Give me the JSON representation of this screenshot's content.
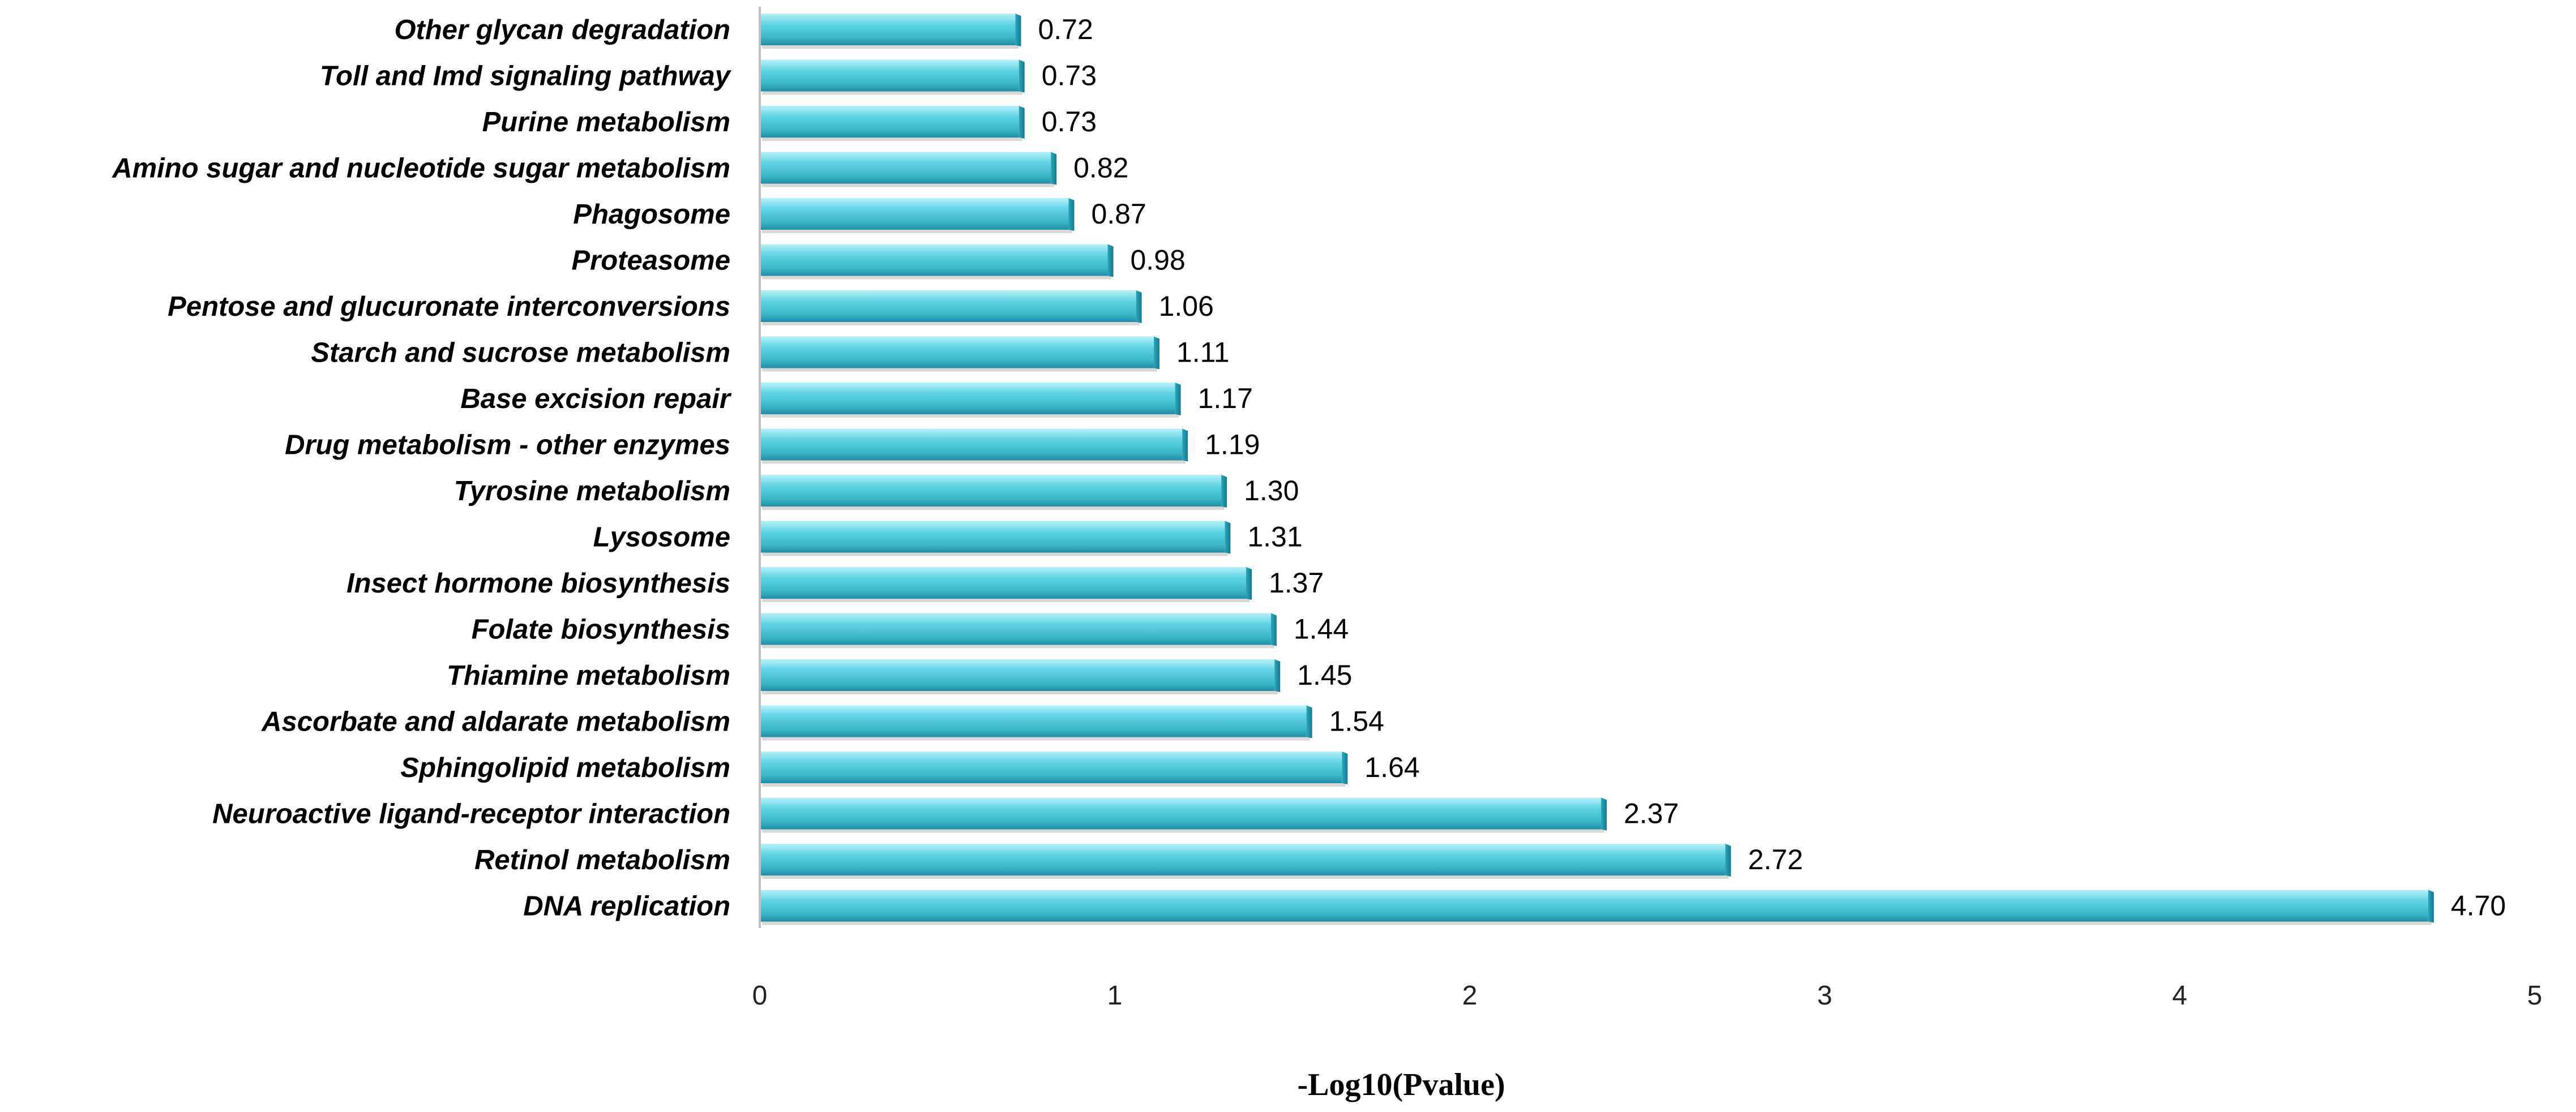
{
  "chart_data": {
    "type": "bar",
    "orientation": "horizontal",
    "categories": [
      "Other glycan degradation",
      "Toll and Imd signaling pathway",
      "Purine metabolism",
      "Amino sugar and nucleotide sugar metabolism",
      "Phagosome",
      "Proteasome",
      "Pentose and glucuronate interconversions",
      "Starch and sucrose metabolism",
      "Base excision repair",
      "Drug metabolism - other enzymes",
      "Tyrosine metabolism",
      "Lysosome",
      "Insect hormone biosynthesis",
      "Folate biosynthesis",
      "Thiamine metabolism",
      "Ascorbate and aldarate metabolism",
      "Sphingolipid metabolism",
      "Neuroactive ligand-receptor interaction",
      "Retinol metabolism",
      "DNA replication"
    ],
    "values": [
      0.72,
      0.73,
      0.73,
      0.82,
      0.87,
      0.98,
      1.06,
      1.11,
      1.17,
      1.19,
      1.3,
      1.31,
      1.37,
      1.44,
      1.45,
      1.54,
      1.64,
      2.37,
      2.72,
      4.7
    ],
    "value_labels": [
      "0.72",
      "0.73",
      "0.73",
      "0.82",
      "0.87",
      "0.98",
      "1.06",
      "1.11",
      "1.17",
      "1.19",
      "1.30",
      "1.31",
      "1.37",
      "1.44",
      "1.45",
      "1.54",
      "1.64",
      "2.37",
      "2.72",
      "4.70"
    ],
    "xlabel": "-Log10(Pvalue)",
    "ylabel": "",
    "title": "",
    "xlim": [
      0,
      5
    ],
    "xticks": [
      "0",
      "1",
      "2",
      "3",
      "4",
      "5"
    ],
    "grid": false,
    "legend": "none",
    "colors": {
      "bar_light": "#8fe6f3",
      "bar_main": "#4cc6da",
      "bar_dark": "#1f8fa3",
      "bar_shadow": "#b8b8b8"
    }
  }
}
